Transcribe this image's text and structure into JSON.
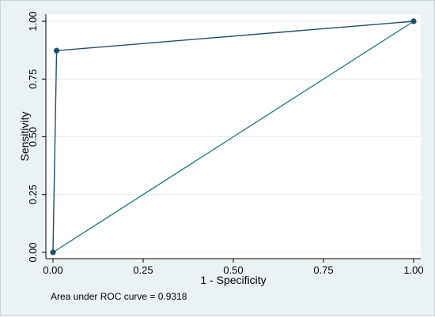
{
  "chart_data": {
    "type": "line",
    "title": "",
    "xlabel": "1 - Specificity",
    "ylabel": "Sensitivity",
    "xlim": [
      0,
      1
    ],
    "ylim": [
      0,
      1
    ],
    "xticks": [
      "0.00",
      "0.25",
      "0.50",
      "0.75",
      "1.00"
    ],
    "yticks": [
      "0.00",
      "0.25",
      "0.50",
      "0.75",
      "1.00"
    ],
    "grid": true,
    "note": "Area under ROC curve = 0.9318",
    "series": [
      {
        "x": [
          0.0,
          0.01,
          1.0
        ],
        "y": [
          0.0,
          0.873,
          1.0
        ],
        "markers": true
      },
      {
        "x": [
          0.0,
          1.0
        ],
        "y": [
          0.0,
          1.0
        ],
        "markers": false
      }
    ],
    "colors": {
      "background": "#eaf2f3",
      "plot_background": "#ffffff",
      "grid": "#e3ecee",
      "roc_line": "#1f4e6b",
      "reference_line": "#1a7a70"
    }
  }
}
